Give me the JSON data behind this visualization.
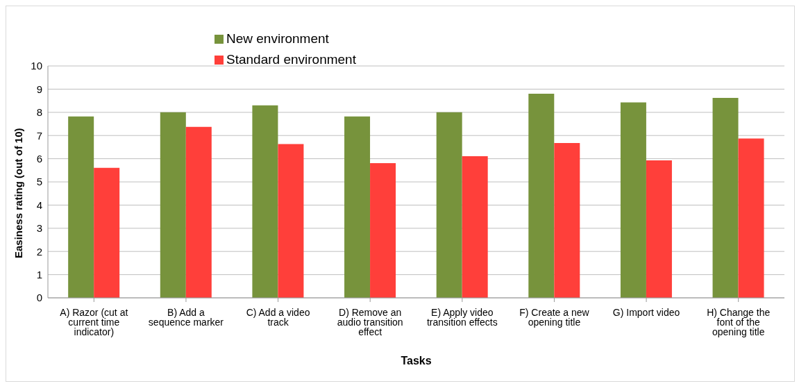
{
  "chart_data": {
    "type": "bar",
    "xlabel": "Tasks",
    "ylabel": "Easiness rating (out of 10)",
    "categories": [
      "A) Razor (cut at current time indicator)",
      "B) Add a sequence marker",
      "C) Add a video track",
      "D) Remove an audio transition effect",
      "E) Apply video transition effects",
      "F) Create a new opening  title",
      "G) Import video",
      "H) Change the font of the opening title"
    ],
    "series": [
      {
        "name": "New environment",
        "color": "#77933c",
        "values": [
          7.82,
          8.0,
          8.3,
          7.82,
          8.0,
          8.8,
          8.43,
          8.62
        ]
      },
      {
        "name": "Standard environment",
        "color": "#ff3f3a",
        "values": [
          5.61,
          7.37,
          6.63,
          5.81,
          6.11,
          6.68,
          5.93,
          6.87
        ]
      }
    ],
    "ylim": [
      0,
      10
    ],
    "yticks": [
      0,
      1,
      2,
      3,
      4,
      5,
      6,
      7,
      8,
      9,
      10
    ],
    "grid": "y",
    "legend": "top"
  }
}
